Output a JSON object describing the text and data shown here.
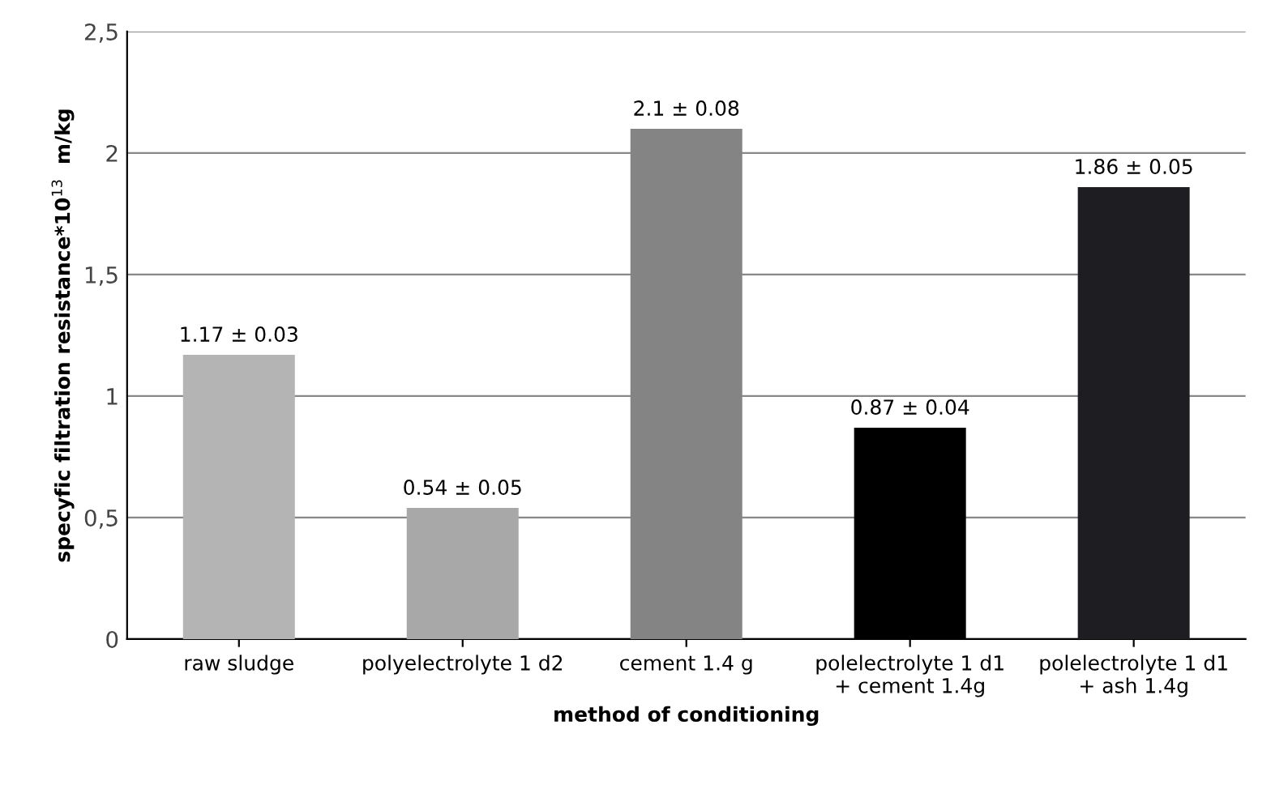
{
  "chart_data": {
    "type": "bar",
    "categories": [
      "raw sludge",
      "polyelectrolyte 1 d2",
      "cement 1.4 g",
      "polelectrolyte 1 d1\n+ cement 1.4g",
      "polelectrolyte 1 d1\n+ ash 1.4g"
    ],
    "values": [
      1.17,
      0.54,
      2.1,
      0.87,
      1.86
    ],
    "colors": [
      "#b4b4b4",
      "#a8a8a8",
      "#848484",
      "#000000",
      "#1e1e22"
    ],
    "value_labels": [
      "1.17 ± 0.03",
      "0.54 ± 0.05",
      "2.1 ± 0.08",
      "0.87 ± 0.04",
      "1.86 ± 0.05"
    ],
    "xlabel": "method of conditioning",
    "ylabel": "specyfic filtration resistance*10$^{13}$  m/kg",
    "ylim": [
      0,
      2.5
    ],
    "yticks": [
      0,
      {
        "value": 0.5,
        "label": "0,5"
      },
      1,
      {
        "value": 1.5,
        "label": "1,5"
      },
      2,
      {
        "value": 2.5,
        "label": "2,5"
      }
    ],
    "grid": "y"
  }
}
